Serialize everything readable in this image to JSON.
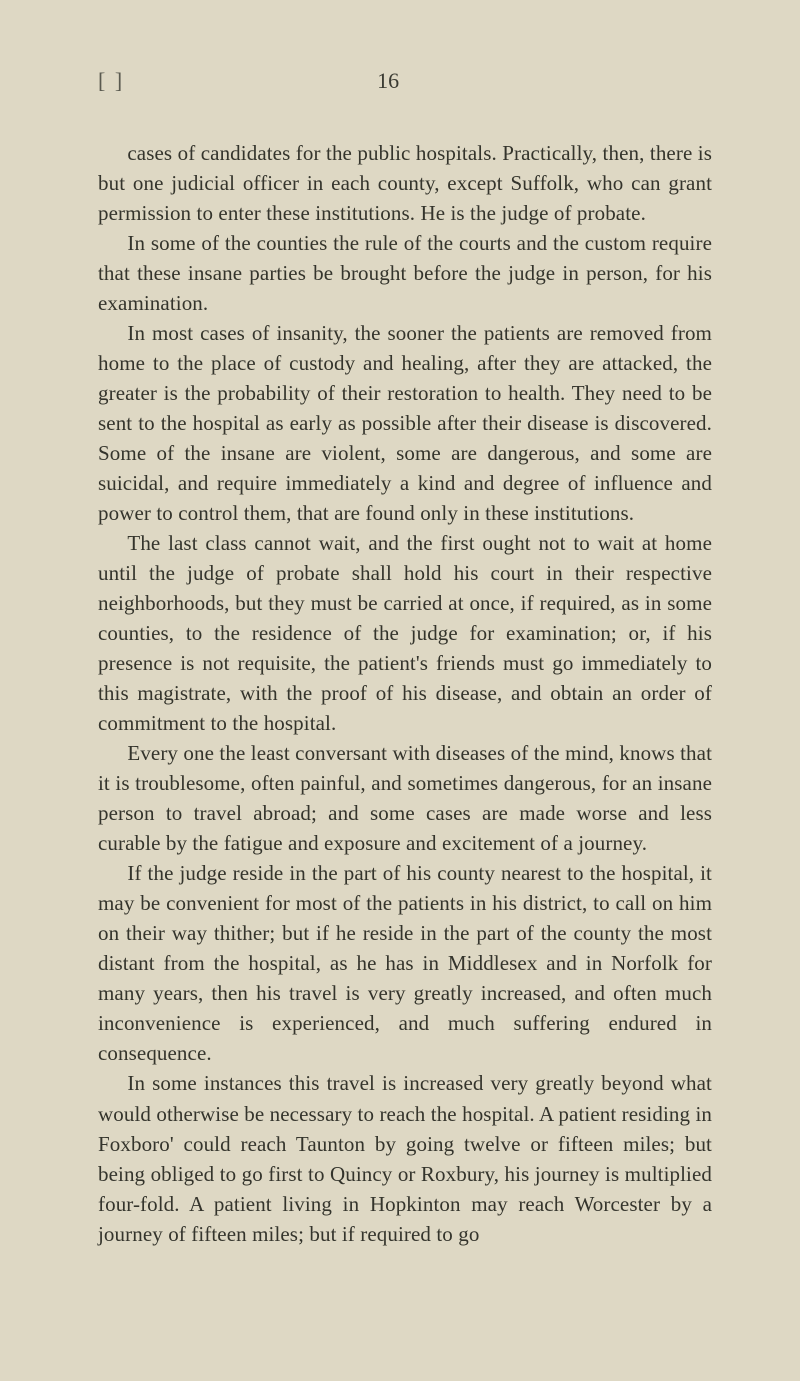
{
  "page": {
    "corner_mark": "[   ]",
    "number": "16",
    "background_color": "#ded8c4",
    "text_color": "#34342c",
    "font_family": "Times New Roman",
    "body_fontsize_pt": 16,
    "line_height": 1.43,
    "text_indent_em": 1.4,
    "paragraphs": [
      "cases of candidates for the public hospitals. Practically, then, there is but one judicial officer in each county, except Suffolk, who can grant permission to enter these institutions. He is the judge of probate.",
      "In some of the counties the rule of the courts and the custom require that these insane parties be brought before the judge in person, for his examination.",
      "In most cases of insanity, the sooner the patients are removed from home to the place of custody and healing, after they are attacked, the greater is the probability of their restoration to health. They need to be sent to the hospital as early as possible after their disease is discovered. Some of the insane are violent, some are dangerous, and some are suicidal, and require immediately a kind and degree of influence and power to control them, that are found only in these institutions.",
      "The last class cannot wait, and the first ought not to wait at home until the judge of probate shall hold his court in their respective neighborhoods, but they must be carried at once, if required, as in some counties, to the residence of the judge for examination; or, if his presence is not requisite, the patient's friends must go immediately to this magistrate, with the proof of his disease, and obtain an order of commitment to the hospital.",
      "Every one the least conversant with diseases of the mind, knows that it is troublesome, often painful, and sometimes dangerous, for an insane person to travel abroad; and some cases are made worse and less curable by the fatigue and exposure and excitement of a journey.",
      "If the judge reside in the part of his county nearest to the hospital, it may be convenient for most of the patients in his district, to call on him on their way thither; but if he reside in the part of the county the most distant from the hospital, as he has in Middlesex and in Norfolk for many years, then his travel is very greatly increased, and often much inconvenience is experienced, and much suffering endured in consequence.",
      "In some instances this travel is increased very greatly beyond what would otherwise be necessary to reach the hospital. A patient residing in Foxboro' could reach Taunton by going twelve or fifteen miles; but being obliged to go first to Quincy or Roxbury, his journey is multiplied four-fold. A patient living in Hopkinton may reach Worcester by a journey of fifteen miles; but if required to go"
    ]
  }
}
